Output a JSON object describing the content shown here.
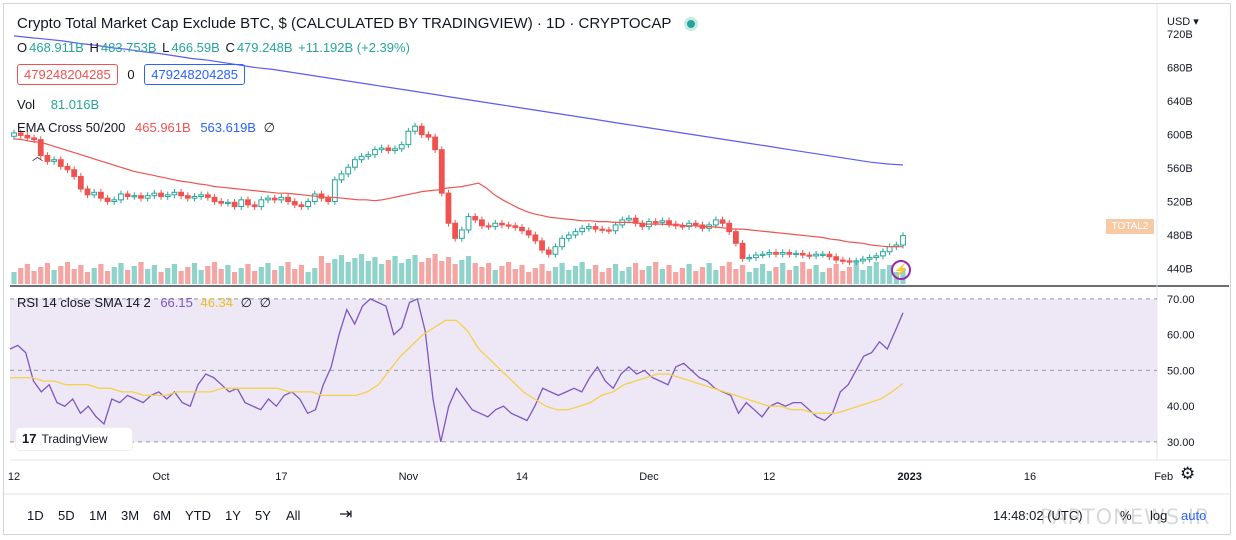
{
  "header": {
    "title": "Crypto Total Market Cap Exclude BTC, $ (CALCULATED BY TRADINGVIEW) · 1D · CRYPTOCAP",
    "ohlc": {
      "o_label": "O",
      "o": "468.911B",
      "h_label": "H",
      "h": "483.753B",
      "l_label": "L",
      "l": "466.59B",
      "c_label": "C",
      "c": "479.248B",
      "change": "+11.192B (+2.39%)"
    },
    "price_box_red": "479248204285",
    "price_box_zero": "0",
    "price_box_blue": "479248204285",
    "vol_label": "Vol",
    "vol_value": "81.016B",
    "ema_label": "EMA Cross 50/200",
    "ema_fast": "465.961B",
    "ema_slow": "563.619B",
    "ema_extra": "∅",
    "currency": "USD ▾",
    "series_tag": "TOTAL2"
  },
  "rsi": {
    "label": "RSI 14 close SMA 14 2",
    "rsi_value": "66.15",
    "sma_value": "46.34",
    "extra1": "∅",
    "extra2": "∅"
  },
  "branding": {
    "logo_text": "TradingView",
    "watermark": "PARTONEWS.IR"
  },
  "toolbar": {
    "timeframes": [
      "1D",
      "5D",
      "1M",
      "3M",
      "6M",
      "YTD",
      "1Y",
      "5Y",
      "All"
    ],
    "time": "14:48:02 (UTC)",
    "percent": "%",
    "log": "log",
    "auto": "auto"
  },
  "colors": {
    "up": "#26a69a",
    "down": "#ef5350",
    "ema_fast": "#ef5350",
    "ema_slow": "#5b5cf5",
    "rsi": "#7e57c2",
    "rsi_sma": "#f5d14c",
    "rsi_band": "#ede7f6"
  },
  "chart_data": [
    {
      "type": "candlestick",
      "title": "Crypto Total Market Cap Exclude BTC, $ (CALCULATED BY TRADINGVIEW) · 1D · CRYPTOCAP",
      "ylabel": "USD",
      "y_ticks": [
        "720B",
        "680B",
        "640B",
        "600B",
        "560B",
        "520B",
        "480B",
        "440B"
      ],
      "y_tick_values": [
        720,
        680,
        640,
        600,
        560,
        520,
        480,
        440
      ],
      "ylim": [
        419,
        737
      ],
      "x_ticks": [
        "12",
        "Oct",
        "17",
        "Nov",
        "14",
        "Dec",
        "12",
        "2023",
        "16",
        "Feb"
      ],
      "x_tick_index": [
        0,
        22,
        40,
        59,
        76,
        95,
        113,
        134,
        152,
        172
      ],
      "closes": [
        602,
        599,
        596,
        594,
        575,
        568,
        570,
        562,
        558,
        550,
        535,
        528,
        531,
        524,
        520,
        522,
        529,
        526,
        527,
        524,
        527,
        530,
        526,
        528,
        531,
        527,
        524,
        526,
        528,
        525,
        520,
        518,
        519,
        514,
        522,
        516,
        514,
        522,
        524,
        522,
        525,
        520,
        516,
        514,
        520,
        529,
        524,
        520,
        546,
        553,
        561,
        570,
        574,
        576,
        582,
        584,
        581,
        583,
        588,
        604,
        610,
        600,
        597,
        582,
        530,
        494,
        476,
        486,
        502,
        498,
        491,
        490,
        494,
        492,
        491,
        489,
        485,
        480,
        473,
        462,
        457,
        466,
        476,
        480,
        484,
        488,
        490,
        487,
        486,
        485,
        492,
        498,
        500,
        494,
        490,
        496,
        495,
        497,
        493,
        491,
        490,
        494,
        492,
        488,
        492,
        498,
        494,
        484,
        470,
        452,
        453,
        456,
        457,
        459,
        457,
        459,
        457,
        458,
        456,
        455,
        457,
        457,
        454,
        450,
        449,
        448,
        449,
        451,
        453,
        455,
        460,
        466,
        468,
        479.25
      ],
      "ema_fast": [
        595,
        594,
        592,
        591,
        589,
        586,
        583,
        580,
        577,
        574,
        571,
        568,
        565,
        562,
        559,
        556,
        554,
        552,
        550,
        548,
        546,
        544,
        543,
        541,
        540,
        538,
        537,
        536,
        535,
        534,
        533,
        532,
        531,
        530,
        530,
        529,
        528,
        527,
        526,
        525,
        525,
        524,
        523,
        522,
        522,
        521,
        522,
        524,
        526,
        528,
        530,
        532,
        533,
        534,
        536,
        537,
        538,
        540,
        542,
        536,
        528,
        522,
        517,
        512,
        508,
        505,
        503,
        501,
        500,
        499,
        498,
        497,
        497,
        496,
        496,
        495,
        495,
        495,
        494,
        493,
        493,
        493,
        492,
        492,
        491,
        491,
        490,
        490,
        489,
        488,
        487,
        487,
        486,
        485,
        484,
        483,
        482,
        481,
        480,
        479,
        478,
        477,
        475,
        474,
        472,
        471,
        470,
        468,
        467,
        466,
        466,
        465.96
      ],
      "ema_fast_start_index": 24,
      "ema_slow": [
        718,
        716,
        714,
        712,
        709,
        707,
        704,
        702,
        699,
        697,
        694,
        691,
        689,
        686,
        683,
        680,
        678,
        675,
        672,
        669,
        666,
        663,
        660,
        657,
        654,
        651,
        648,
        645,
        642,
        639,
        636,
        633,
        630,
        627,
        624,
        621,
        618,
        615,
        612,
        609,
        606,
        603,
        600,
        597,
        594,
        591,
        588,
        585,
        582,
        579,
        576,
        573,
        570,
        567,
        565,
        563.62
      ],
      "ema_slow_index_step": 2.35
    },
    {
      "type": "line",
      "title": "RSI 14 close SMA 14 2",
      "y_ticks": [
        "70.00",
        "60.00",
        "50.00",
        "40.00",
        "30.00"
      ],
      "y_tick_values": [
        70,
        60,
        50,
        40,
        30
      ],
      "ylim": [
        25.5,
        72.5
      ],
      "band": [
        30,
        70
      ],
      "mid": 50,
      "series": [
        {
          "name": "RSI",
          "values": [
            56,
            57,
            55,
            47,
            44,
            46,
            41,
            40,
            42,
            38,
            40,
            37,
            35,
            42,
            41,
            43,
            42,
            41,
            43,
            44,
            42,
            44,
            41,
            40,
            46,
            49,
            48,
            46,
            44,
            45,
            41,
            40,
            39,
            42,
            40,
            43,
            44,
            42,
            38,
            39,
            46,
            51,
            60,
            67,
            63,
            68,
            70,
            69,
            68,
            60,
            62,
            69,
            70,
            61,
            42,
            30,
            40,
            45,
            42,
            39,
            38,
            37,
            39,
            40,
            38,
            37,
            36,
            40,
            45,
            44,
            43,
            44,
            45,
            44,
            48,
            51,
            47,
            45,
            49,
            51,
            49,
            50,
            48,
            47,
            46,
            51,
            52,
            50,
            48,
            47,
            45,
            44,
            43,
            38,
            41,
            39,
            37,
            40,
            41,
            40,
            41,
            41,
            39,
            37,
            36,
            38,
            44,
            46,
            50,
            54,
            55,
            58,
            56,
            61,
            66.15
          ]
        },
        {
          "name": "SMA",
          "values": [
            48,
            48,
            48,
            47,
            47,
            46,
            46,
            46,
            45,
            45,
            44,
            44,
            43,
            43,
            43,
            44,
            44,
            44,
            44,
            45,
            45,
            45,
            45,
            45,
            45,
            44,
            44,
            44,
            43,
            43,
            43,
            43,
            44,
            46,
            50,
            54,
            57,
            60,
            62,
            64,
            64,
            61,
            56,
            53,
            50,
            47,
            44,
            42,
            40,
            39,
            39,
            40,
            41,
            43,
            44,
            46,
            47,
            48,
            49,
            49,
            48,
            47,
            46,
            45,
            44,
            43,
            42,
            41,
            40,
            40,
            39,
            39,
            38,
            38,
            38,
            39,
            40,
            41,
            42,
            44,
            46.34
          ]
        }
      ]
    }
  ]
}
